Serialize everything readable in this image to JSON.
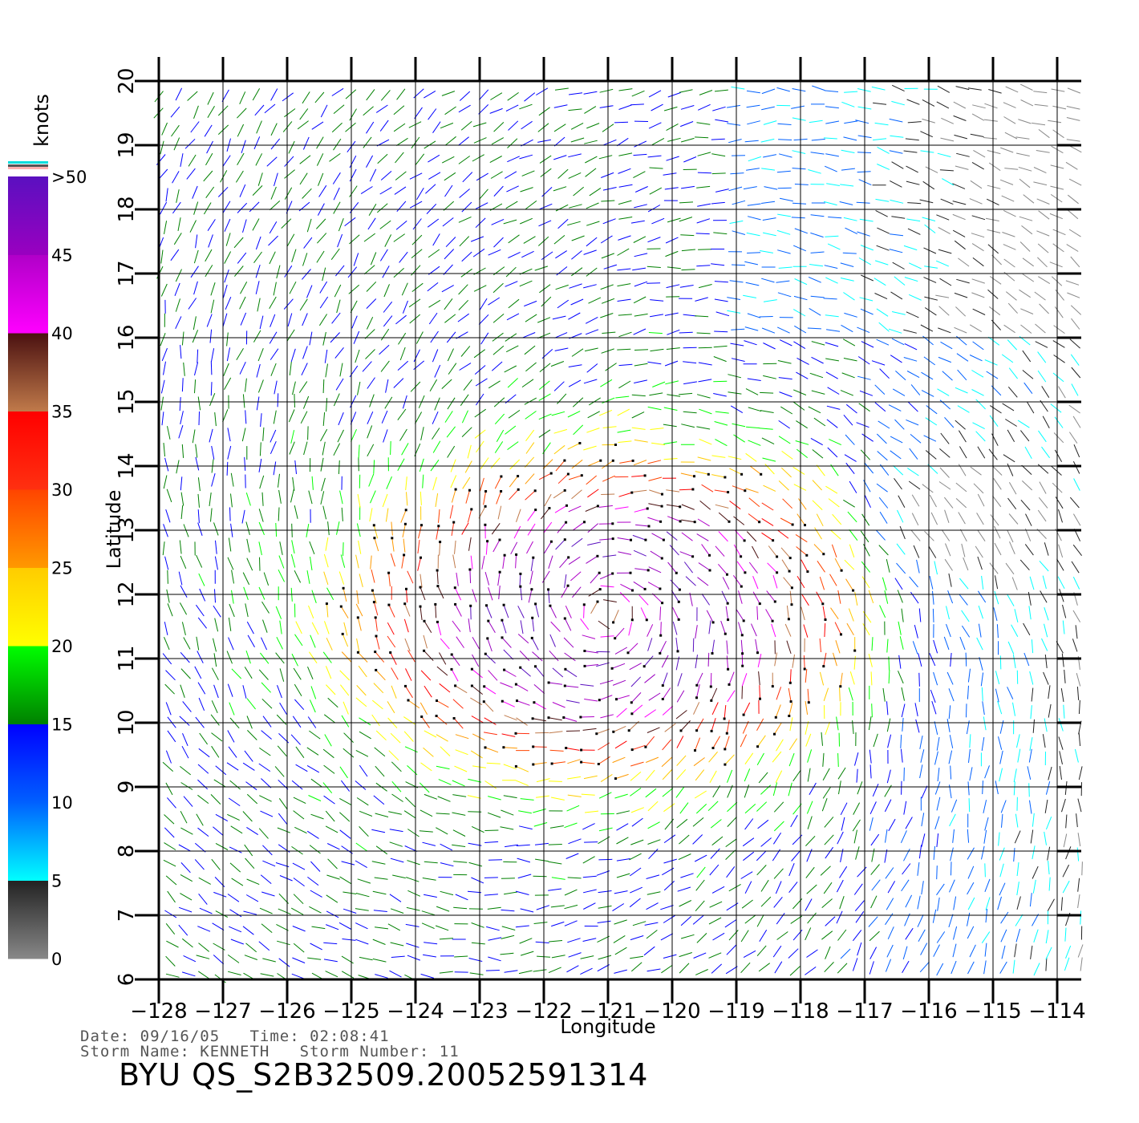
{
  "chart_data": {
    "type": "wind-vector-map",
    "xlabel": "Longitude",
    "ylabel": "Latitude",
    "xlim": [
      -128,
      -113.6
    ],
    "ylim": [
      6,
      20
    ],
    "x_ticks": [
      -128,
      -127,
      -126,
      -125,
      -124,
      -123,
      -122,
      -121,
      -120,
      -119,
      -118,
      -117,
      -116,
      -115,
      -114
    ],
    "x_tick_labels": [
      "−128",
      "−127",
      "−126",
      "−125",
      "−124",
      "−123",
      "−122",
      "−121",
      "−120",
      "−119",
      "−118",
      "−117",
      "−116",
      "−115",
      "−114"
    ],
    "y_ticks": [
      6,
      7,
      8,
      9,
      10,
      11,
      12,
      13,
      14,
      15,
      16,
      17,
      18,
      19,
      20
    ],
    "y_tick_labels": [
      "6",
      "7",
      "8",
      "9",
      "10",
      "11",
      "12",
      "13",
      "14",
      "15",
      "16",
      "17",
      "18",
      "19",
      "20"
    ],
    "grid": true,
    "grid_spacing_deg": 0.25,
    "storm_center": {
      "lon": -121.0,
      "lat": 11.7
    },
    "colorbar": {
      "title": "knots",
      "labels": [
        "0",
        "5",
        "10",
        "15",
        "20",
        "25",
        "30",
        "35",
        "40",
        "45",
        ">50"
      ],
      "bins": [
        {
          "min": 0,
          "max": 5,
          "colors": [
            "#888888",
            "#222222"
          ]
        },
        {
          "min": 5,
          "max": 10,
          "colors": [
            "#00ffff",
            "#0060ff"
          ]
        },
        {
          "min": 10,
          "max": 15,
          "colors": [
            "#0060ff",
            "#0000ff"
          ]
        },
        {
          "min": 15,
          "max": 20,
          "colors": [
            "#008000",
            "#00ff00"
          ]
        },
        {
          "min": 20,
          "max": 25,
          "colors": [
            "#ffff00",
            "#ffcc00"
          ]
        },
        {
          "min": 25,
          "max": 30,
          "colors": [
            "#ff9900",
            "#ff4400"
          ]
        },
        {
          "min": 30,
          "max": 35,
          "colors": [
            "#ff3010",
            "#ff0000"
          ]
        },
        {
          "min": 35,
          "max": 40,
          "colors": [
            "#c07a4a",
            "#4a1010"
          ]
        },
        {
          "min": 40,
          "max": 45,
          "colors": [
            "#ff00ff",
            "#b000c8"
          ]
        },
        {
          "min": 45,
          "max": 50,
          "colors": [
            "#9a00c0",
            "#5a10c0"
          ]
        }
      ]
    }
  },
  "footer": {
    "date_line": "Date: 09/16/05   Time: 02:08:41",
    "storm_line": "Storm Name: KENNETH   Storm Number: 11",
    "file_id": "BYU QS_S2B32509.20052591314"
  }
}
